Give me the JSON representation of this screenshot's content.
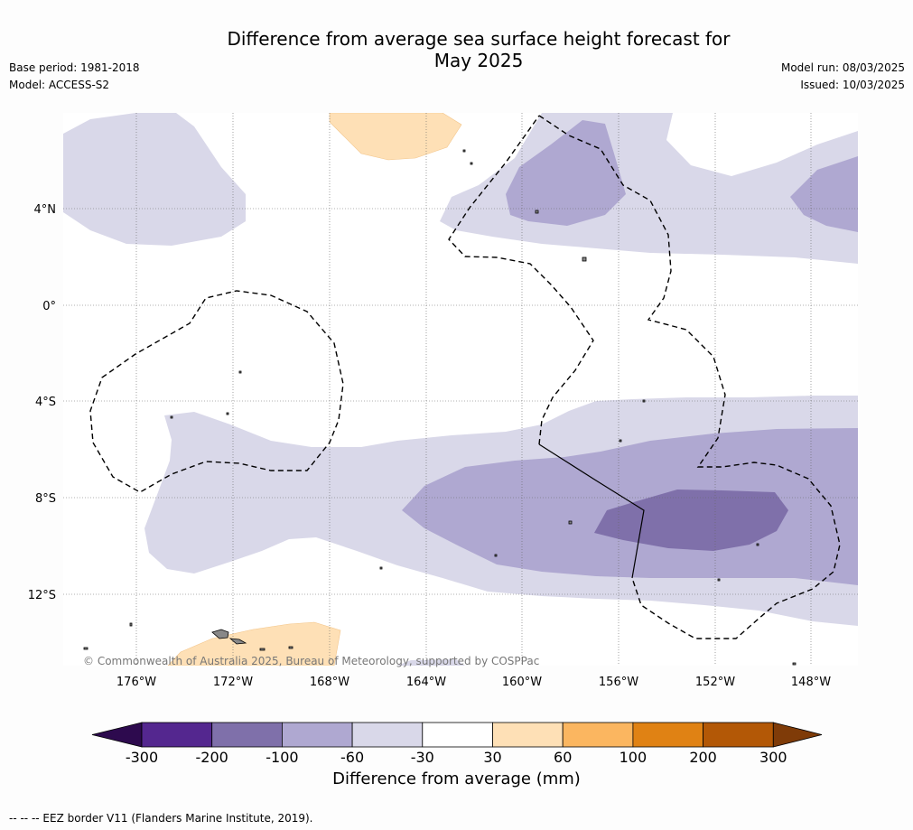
{
  "title": {
    "line1": "Difference from average sea surface height forecast for",
    "line2": "May 2025"
  },
  "meta_left": {
    "base_period": "Base period: 1981-2018",
    "model": "Model: ACCESS-S2"
  },
  "meta_right": {
    "model_run": "Model run: 08/03/2025",
    "issued": "Issued: 10/03/2025"
  },
  "map": {
    "lat_labels": [
      "4°N",
      "0°",
      "4°S",
      "8°S",
      "12°S"
    ],
    "lon_labels": [
      "176°W",
      "172°W",
      "168°W",
      "164°W",
      "160°W",
      "156°W",
      "152°W",
      "148°W"
    ],
    "copyright": "© Commonwealth of Australia 2025, Bureau of Meteorology, supported by COSPPac"
  },
  "colorbar": {
    "ticks": [
      "-300",
      "-200",
      "-100",
      "-60",
      "-30",
      "30",
      "60",
      "100",
      "200",
      "300"
    ],
    "colors": [
      "#2d0a4e",
      "#54278f",
      "#7f70aa",
      "#afa8d1",
      "#d9d8e9",
      "#ffffff",
      "#fee0b6",
      "#fbb660",
      "#e08214",
      "#b35806",
      "#7f3b08"
    ],
    "label": "Difference from average (mm)"
  },
  "footnote": "--  --  -- EEZ border V11 (Flanders Marine Institute, 2019)."
}
